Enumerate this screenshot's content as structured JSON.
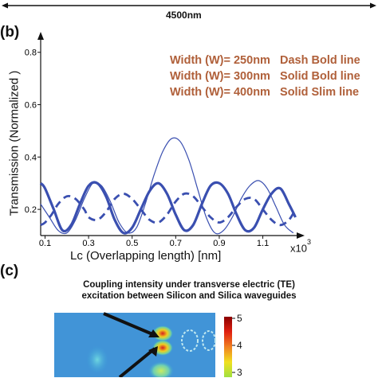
{
  "panel_b_label": "(b)",
  "panel_c_label": "(c)",
  "top_dimension": "4500nm",
  "caption_line1": "Coupling intensity under transverse electric (TE)",
  "caption_line2": "excitation between Silicon and Silica waveguides",
  "colorbar_ticks": [
    "5",
    "4",
    "3"
  ],
  "colors": {
    "curve": "#3a4fb0",
    "legend_text": "#b0603a"
  },
  "chart_data": {
    "type": "line",
    "xlabel": "Lc (Overlapping length) [nm]",
    "ylabel": "Transmission (Normalized )",
    "x_multiplier_label": "x10",
    "x_multiplier_exp": "3",
    "xlim": [
      0.08,
      1.27
    ],
    "ylim": [
      0.1,
      0.86
    ],
    "xticks": [
      "0.1",
      "0.3",
      "0.5",
      "0.7",
      "0.9",
      "1.1"
    ],
    "yticks": [
      "0.2",
      "0.4",
      "0.6",
      "0.8"
    ],
    "legend": [
      "Width (W)= 250nm   Dash Bold line",
      "Width (W)= 300nm   Solid Bold line",
      "Width (W)= 400nm   Solid Slim line"
    ],
    "series": [
      {
        "name": "Width (W)= 250nm",
        "style": "dash-bold",
        "x": [
          0.08,
          0.1,
          0.13,
          0.16,
          0.2,
          0.24,
          0.28,
          0.3,
          0.34,
          0.38,
          0.42,
          0.46,
          0.5,
          0.54,
          0.58,
          0.62,
          0.66,
          0.7,
          0.74,
          0.78,
          0.82,
          0.86,
          0.9,
          0.94,
          0.98,
          1.02,
          1.06,
          1.1,
          1.14,
          1.18,
          1.22,
          1.25
        ],
        "y": [
          0.14,
          0.15,
          0.18,
          0.22,
          0.25,
          0.24,
          0.2,
          0.17,
          0.16,
          0.19,
          0.24,
          0.26,
          0.24,
          0.2,
          0.16,
          0.15,
          0.18,
          0.23,
          0.26,
          0.25,
          0.21,
          0.17,
          0.15,
          0.17,
          0.21,
          0.24,
          0.24,
          0.2,
          0.16,
          0.14,
          0.16,
          0.2
        ]
      },
      {
        "name": "Width (W)= 300nm",
        "style": "solid-bold",
        "x": [
          0.08,
          0.1,
          0.14,
          0.18,
          0.22,
          0.26,
          0.3,
          0.34,
          0.38,
          0.42,
          0.46,
          0.5,
          0.54,
          0.58,
          0.62,
          0.66,
          0.7,
          0.74,
          0.78,
          0.82,
          0.86,
          0.9,
          0.94,
          0.98,
          1.02,
          1.06,
          1.1,
          1.14,
          1.18,
          1.22,
          1.25
        ],
        "y": [
          0.3,
          0.28,
          0.2,
          0.12,
          0.14,
          0.22,
          0.29,
          0.3,
          0.25,
          0.16,
          0.11,
          0.13,
          0.2,
          0.27,
          0.3,
          0.26,
          0.18,
          0.12,
          0.14,
          0.22,
          0.29,
          0.3,
          0.26,
          0.18,
          0.12,
          0.13,
          0.2,
          0.26,
          0.28,
          0.22,
          0.17
        ]
      },
      {
        "name": "Width (W)= 400nm",
        "style": "solid-slim",
        "x": [
          0.08,
          0.12,
          0.16,
          0.2,
          0.24,
          0.28,
          0.32,
          0.36,
          0.4,
          0.44,
          0.48,
          0.52,
          0.56,
          0.6,
          0.64,
          0.68,
          0.72,
          0.76,
          0.8,
          0.84,
          0.88,
          0.92,
          0.96,
          1.0,
          1.04,
          1.08,
          1.12,
          1.16,
          1.2,
          1.24
        ],
        "y": [
          0.22,
          0.17,
          0.12,
          0.11,
          0.16,
          0.24,
          0.3,
          0.29,
          0.23,
          0.15,
          0.11,
          0.13,
          0.22,
          0.33,
          0.42,
          0.47,
          0.46,
          0.39,
          0.28,
          0.17,
          0.11,
          0.12,
          0.17,
          0.24,
          0.29,
          0.31,
          0.28,
          0.21,
          0.14,
          0.11
        ]
      }
    ]
  }
}
